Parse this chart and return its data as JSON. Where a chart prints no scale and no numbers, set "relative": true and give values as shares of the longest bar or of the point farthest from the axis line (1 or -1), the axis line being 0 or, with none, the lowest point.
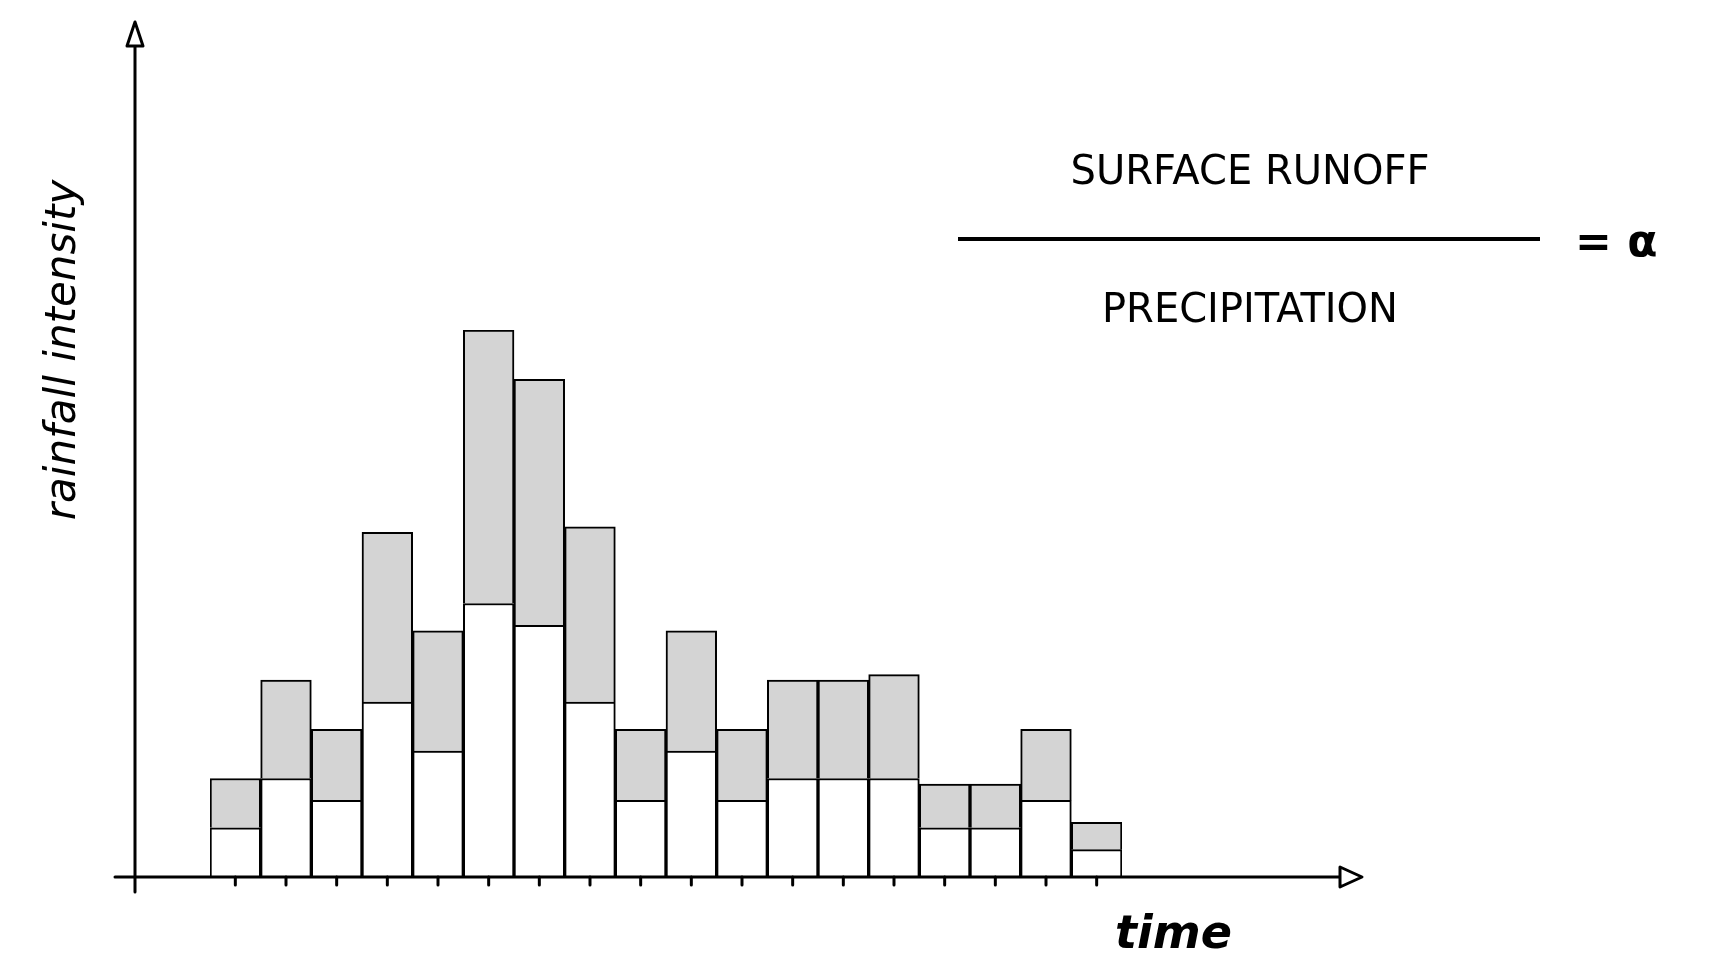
{
  "chart_data": {
    "type": "bar",
    "stacked": true,
    "relative": true,
    "xlabel": "time",
    "ylabel": "rainfall intensity",
    "annotations": [
      "SURFACE RUNOFF",
      "PRECIPITATION",
      "= α"
    ],
    "categories": [
      null,
      null,
      null,
      null,
      null,
      null,
      null,
      null,
      null,
      null,
      null,
      null,
      null,
      null,
      null,
      null,
      null,
      null
    ],
    "series": [
      {
        "color": "#ffffff",
        "values": [
          0.09,
          0.18,
          0.14,
          0.32,
          0.23,
          0.5,
          0.46,
          0.32,
          0.14,
          0.23,
          0.14,
          0.18,
          0.18,
          0.18,
          0.09,
          0.09,
          0.14,
          0.05
        ]
      },
      {
        "color": "#d4d4d4",
        "values": [
          0.09,
          0.18,
          0.13,
          0.31,
          0.22,
          0.5,
          0.45,
          0.32,
          0.13,
          0.22,
          0.13,
          0.18,
          0.18,
          0.19,
          0.08,
          0.08,
          0.13,
          0.05
        ]
      }
    ],
    "grid": false,
    "legend": false
  }
}
